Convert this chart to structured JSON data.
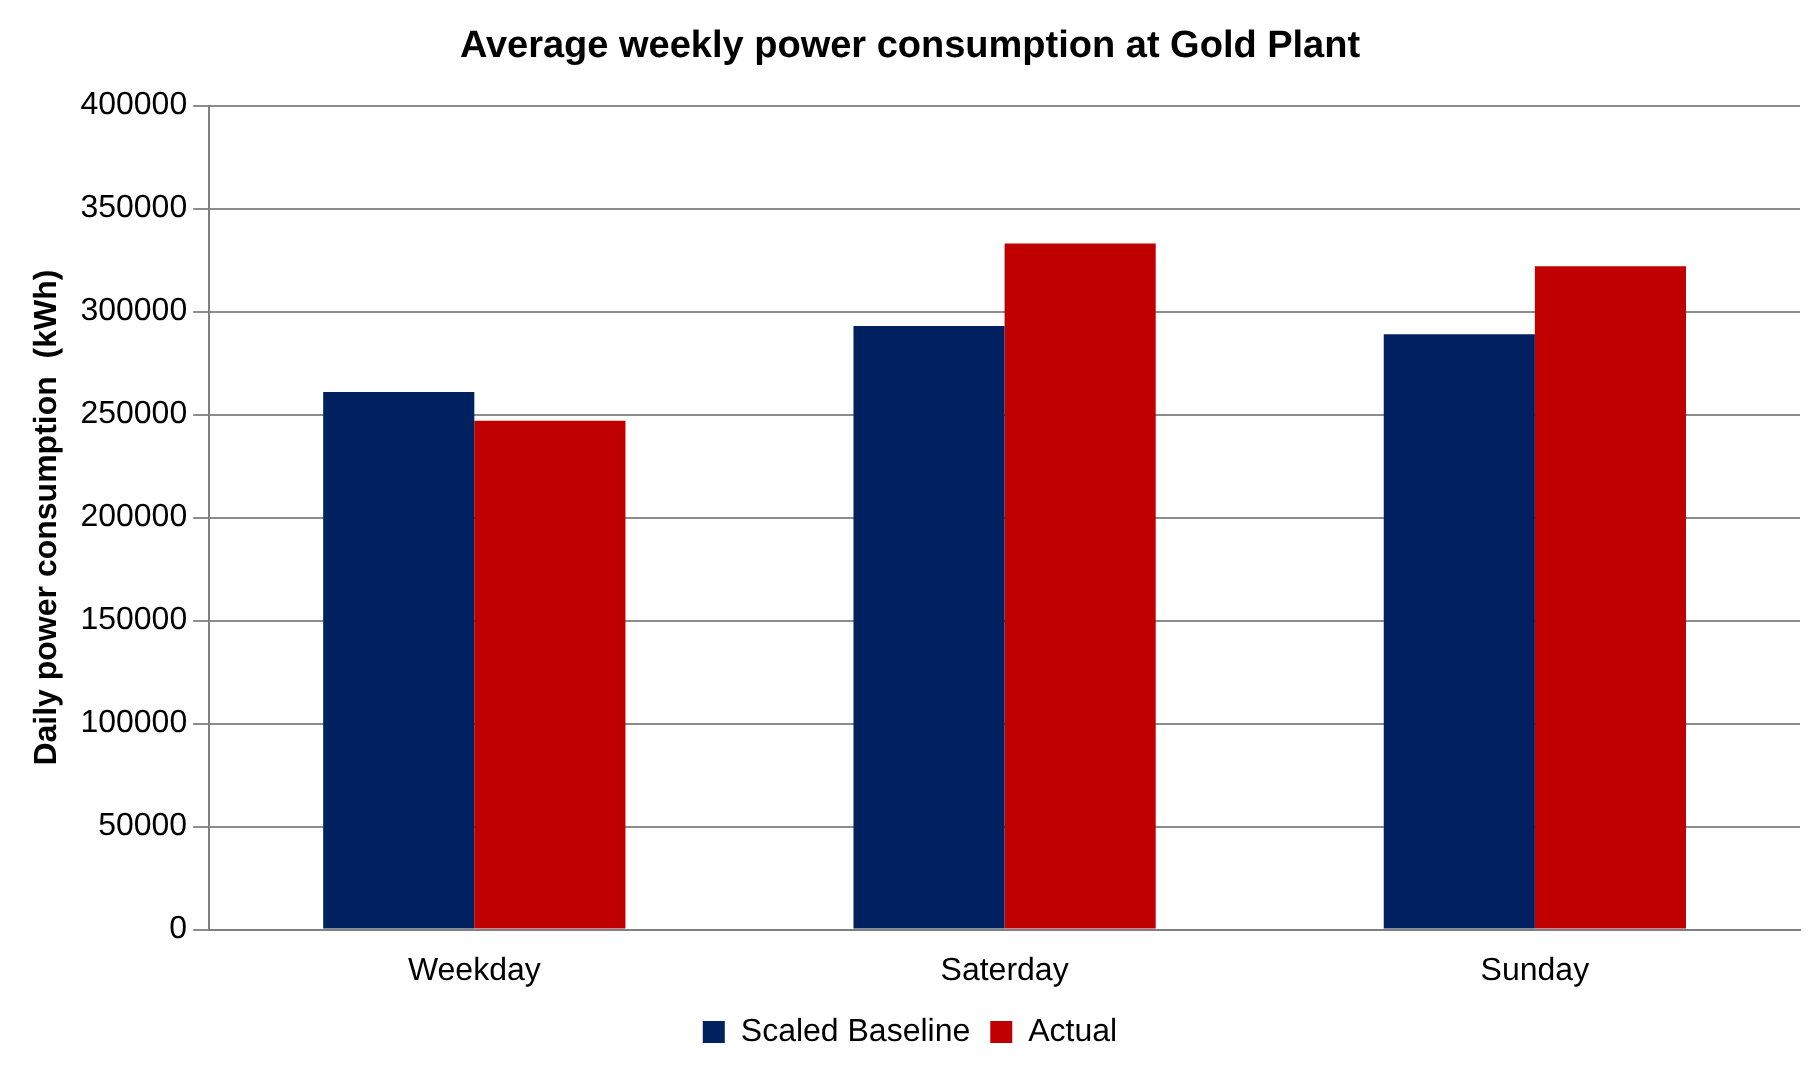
{
  "chart_data": {
    "type": "bar",
    "title": "Average weekly power consumption at Gold Plant",
    "ylabel": "Daily power consumption  (kWh)",
    "categories": [
      "Weekday",
      "Saterday",
      "Sunday"
    ],
    "series": [
      {
        "name": "Scaled Baseline",
        "color": "#002060",
        "values": [
          261000,
          293000,
          289000
        ]
      },
      {
        "name": "Actual",
        "color": "#c00000",
        "values": [
          247000,
          333000,
          322000
        ]
      }
    ],
    "ylim": [
      0,
      400000
    ],
    "yticks": [
      0,
      50000,
      100000,
      150000,
      200000,
      250000,
      300000,
      350000,
      400000
    ],
    "grid": "y",
    "legend": "bottom"
  }
}
